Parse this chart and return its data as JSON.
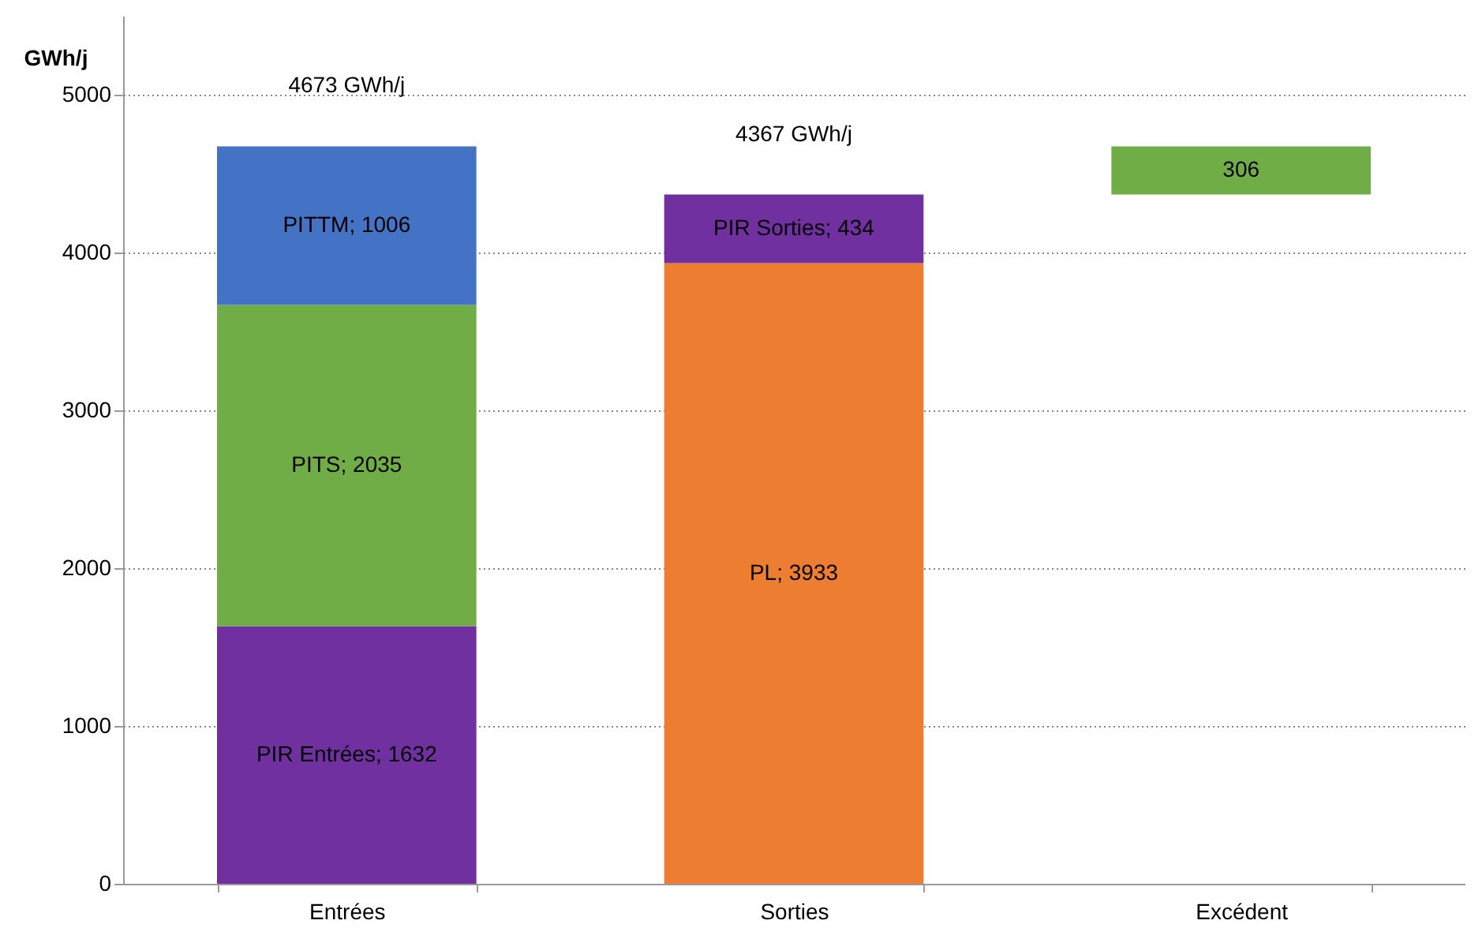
{
  "chart_data": {
    "type": "bar",
    "stacked": true,
    "ylabel": "GWh/j",
    "categories": [
      "Entrées",
      "Sorties",
      "Excédent"
    ],
    "ylim": [
      0,
      5500
    ],
    "yticks": [
      0,
      1000,
      2000,
      3000,
      4000,
      5000
    ],
    "grid": "y",
    "series": [
      {
        "color": "#7030a0",
        "values": [
          1632,
          null,
          null
        ],
        "value_labels": [
          "PIR Entrées; 1632",
          null,
          null
        ]
      },
      {
        "color": "#70ad47",
        "values": [
          2035,
          null,
          null
        ],
        "value_labels": [
          "PITS; 2035",
          null,
          null
        ]
      },
      {
        "color": "#4472c4",
        "values": [
          1006,
          null,
          null
        ],
        "value_labels": [
          "PITTM; 1006",
          null,
          null
        ]
      },
      {
        "color": "#ed7d31",
        "values": [
          null,
          3933,
          null
        ],
        "value_labels": [
          null,
          "PL; 3933",
          null
        ]
      },
      {
        "color": "#7030a0",
        "values": [
          null,
          434,
          null
        ],
        "value_labels": [
          null,
          "PIR Sorties; 434",
          null
        ]
      },
      {
        "color": "#70ad47",
        "values": [
          null,
          null,
          306
        ],
        "base": [
          null,
          null,
          4367
        ],
        "value_labels": [
          null,
          null,
          "306"
        ]
      }
    ],
    "totals": [
      "4673 GWh/j",
      "4367 GWh/j",
      null
    ]
  }
}
